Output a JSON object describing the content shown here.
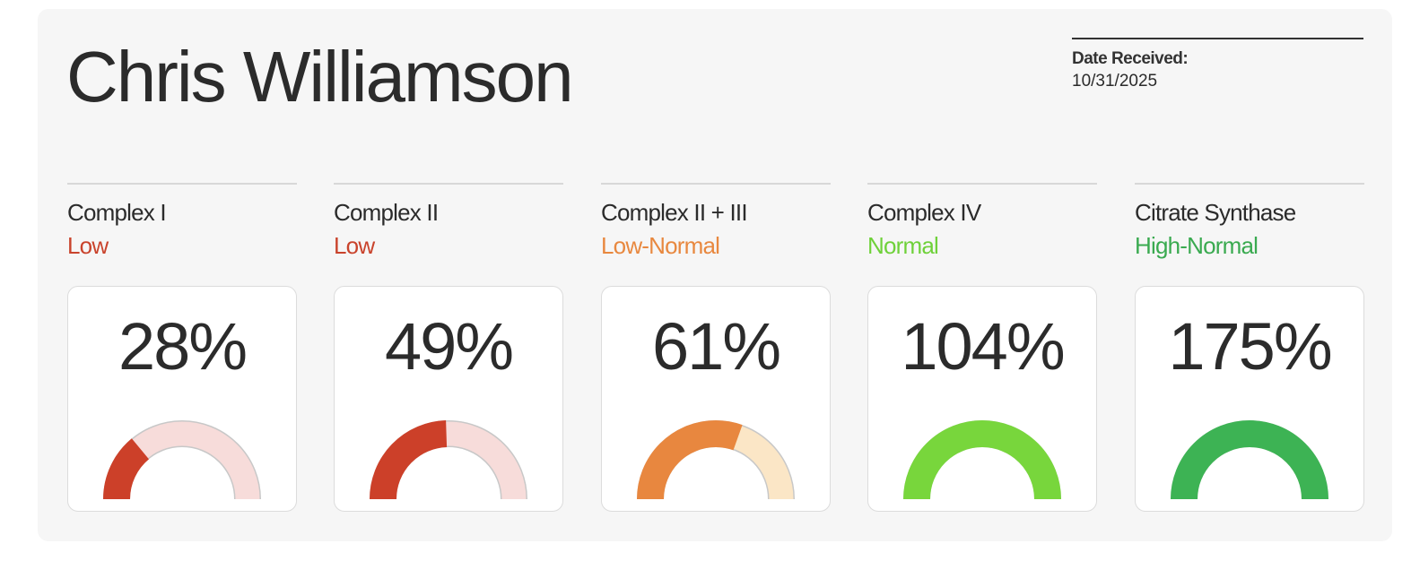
{
  "header": {
    "name": "Chris Williamson",
    "date_label": "Date Received:",
    "date": "10/31/2025"
  },
  "cards": [
    {
      "label": "Complex I",
      "status": "Low",
      "status_color": "#c9432c",
      "value": 28,
      "value_label": "28%",
      "color": "#cc4029",
      "track_color": "#f7dcda"
    },
    {
      "label": "Complex II",
      "status": "Low",
      "status_color": "#c9432c",
      "value": 49,
      "value_label": "49%",
      "color": "#cc4029",
      "track_color": "#f7dcda"
    },
    {
      "label": "Complex II + III",
      "status": "Low-Normal",
      "status_color": "#e8883f",
      "value": 61,
      "value_label": "61%",
      "color": "#e8873f",
      "track_color": "#fbe6c6"
    },
    {
      "label": "Complex IV",
      "status": "Normal",
      "status_color": "#6fd13a",
      "value": 104,
      "value_label": "104%",
      "color": "#78d63c",
      "track_color": "#e2f5d3"
    },
    {
      "label": "Citrate Synthase",
      "status": "High-Normal",
      "status_color": "#3aaa50",
      "value": 175,
      "value_label": "175%",
      "color": "#3db354",
      "track_color": "#d6f0da"
    }
  ]
}
